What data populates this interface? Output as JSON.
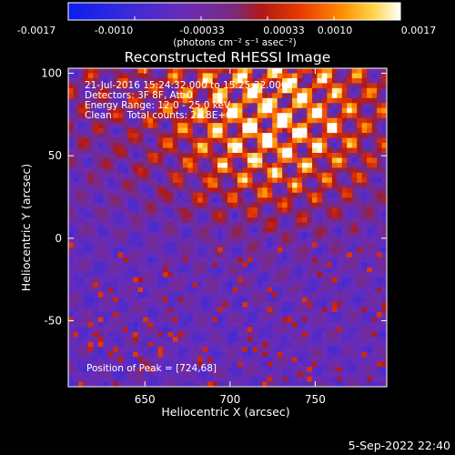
{
  "colorbar": {
    "ticks": [
      "-0.0017",
      "-0.0010",
      "-0.00033",
      "0.00033",
      "0.0010",
      "0.0017"
    ],
    "unit_label": "(photons cm⁻² s⁻¹ asec⁻²)"
  },
  "timestamp": "5-Sep-2022 22:40",
  "chart_data": {
    "type": "heatmap",
    "title": "Reconstructed RHESSI Image",
    "xlabel": "Heliocentric X (arcsec)",
    "ylabel": "Heliocentric Y (arcsec)",
    "xlim": [
      605,
      792
    ],
    "ylim": [
      -90,
      103
    ],
    "x_ticks": [
      650,
      700,
      750
    ],
    "y_ticks": [
      -50,
      0,
      50,
      100
    ],
    "colorbar_range": [
      -0.0017,
      0.0017
    ],
    "colormap": "rhessi-hot-with-blue-negative",
    "annotations": [
      "21-Jul-2016 15:24:32.000 to 15:25:32.000",
      "Detectors: 3F 8F, Att 0",
      "Energy Range: 12.0 - 25.0 keV",
      "Clean     Total counts: 2.18E+03"
    ],
    "peak_label": "Position of Peak = [724,68]",
    "peak": [
      724,
      68
    ]
  }
}
